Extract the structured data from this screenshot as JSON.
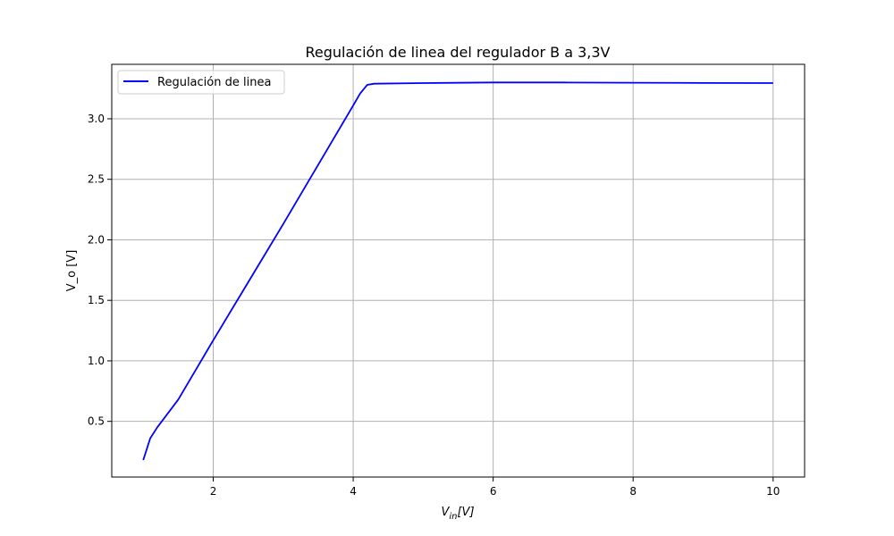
{
  "chart_data": {
    "type": "line",
    "title": "Regulación de linea del regulador B a 3,3V",
    "xlabel": "V_in[V]",
    "ylabel": "V_o [V]",
    "xlim": [
      0.55,
      10.45
    ],
    "ylim": [
      0.04,
      3.45
    ],
    "xticks": [
      2,
      4,
      6,
      8,
      10
    ],
    "xtick_labels": [
      "2",
      "4",
      "6",
      "8",
      "10"
    ],
    "yticks": [
      0.5,
      1.0,
      1.5,
      2.0,
      2.5,
      3.0
    ],
    "ytick_labels": [
      "0.5",
      "1.0",
      "1.5",
      "2.0",
      "2.5",
      "3.0"
    ],
    "grid": true,
    "legend_position": "top-left",
    "series": [
      {
        "name": "Regulación de linea",
        "color": "#0000ff",
        "x": [
          1.0,
          1.1,
          1.2,
          1.5,
          2.0,
          2.5,
          3.0,
          3.5,
          4.0,
          4.1,
          4.2,
          4.3,
          5.0,
          6.0,
          7.0,
          8.0,
          9.0,
          10.0
        ],
        "y": [
          0.18,
          0.36,
          0.45,
          0.68,
          1.17,
          1.65,
          2.13,
          2.62,
          3.11,
          3.21,
          3.28,
          3.29,
          3.295,
          3.3,
          3.3,
          3.298,
          3.296,
          3.295
        ]
      }
    ]
  }
}
